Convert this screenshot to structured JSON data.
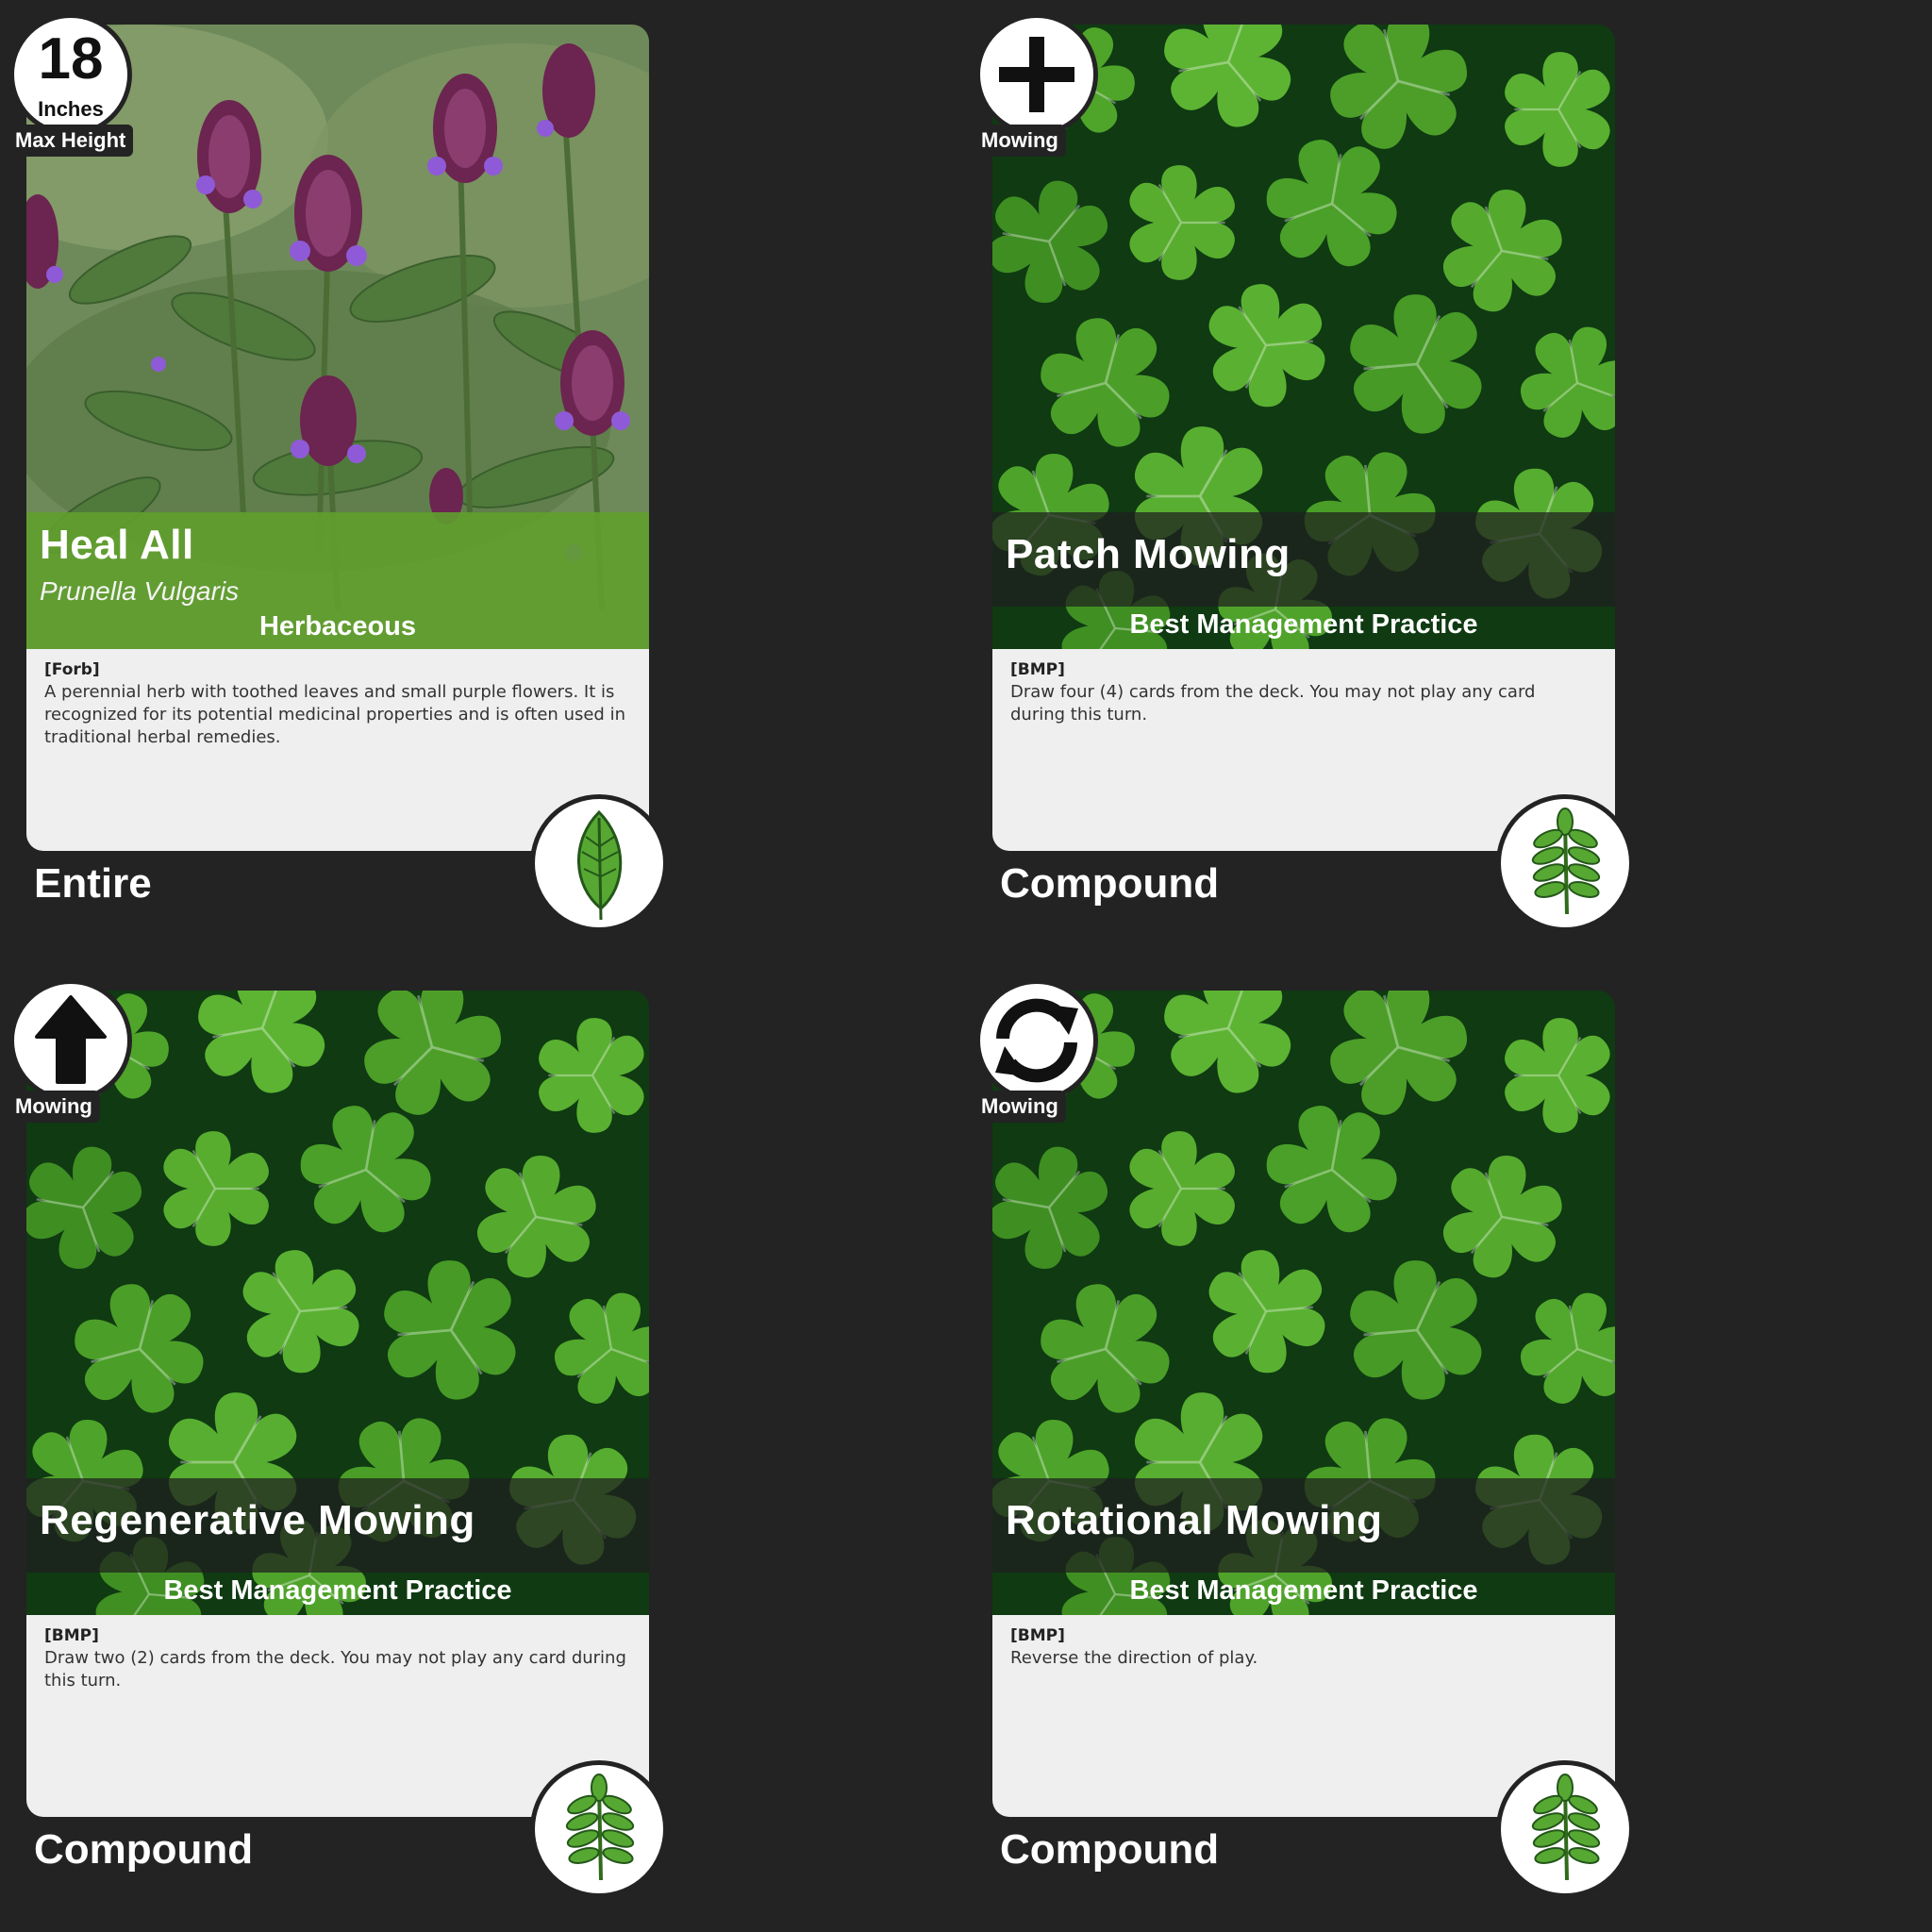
{
  "cards": [
    {
      "corner": {
        "value": "18",
        "unit": "Inches",
        "label": "Max Height"
      },
      "title": "Heal All",
      "scientific_name": "Prunella Vulgaris",
      "category": "Herbaceous",
      "tag": "[Forb]",
      "description": "A perennial herb with toothed leaves and small purple flowers. It is recognized for its potential medicinal properties and is often used in traditional herbal remedies.",
      "leaf_type": "Entire",
      "leaf_icon": "entire-leaf-icon"
    },
    {
      "corner": {
        "icon": "plus-icon",
        "label": "Mowing"
      },
      "title": "Patch Mowing",
      "category": "Best Management Practice",
      "tag": "[BMP]",
      "description": "Draw four (4) cards from the deck. You may not play any card during this turn.",
      "leaf_type": "Compound",
      "leaf_icon": "compound-leaf-icon"
    },
    {
      "corner": {
        "icon": "up-arrow-icon",
        "label": "Mowing"
      },
      "title": "Regenerative Mowing",
      "category": "Best Management Practice",
      "tag": "[BMP]",
      "description": "Draw two (2) cards from the deck. You may not play any card during this turn.",
      "leaf_type": "Compound",
      "leaf_icon": "compound-leaf-icon"
    },
    {
      "corner": {
        "icon": "rotate-icon",
        "label": "Mowing"
      },
      "title": "Rotational Mowing",
      "category": "Best Management Practice",
      "tag": "[BMP]",
      "description": "Reverse the direction of play.",
      "leaf_type": "Compound",
      "leaf_icon": "compound-leaf-icon"
    }
  ],
  "colors": {
    "background": "#232323",
    "plant_band": "#609e2e",
    "desc_box": "#efefef",
    "leaf_green": "#4a9a2a"
  }
}
